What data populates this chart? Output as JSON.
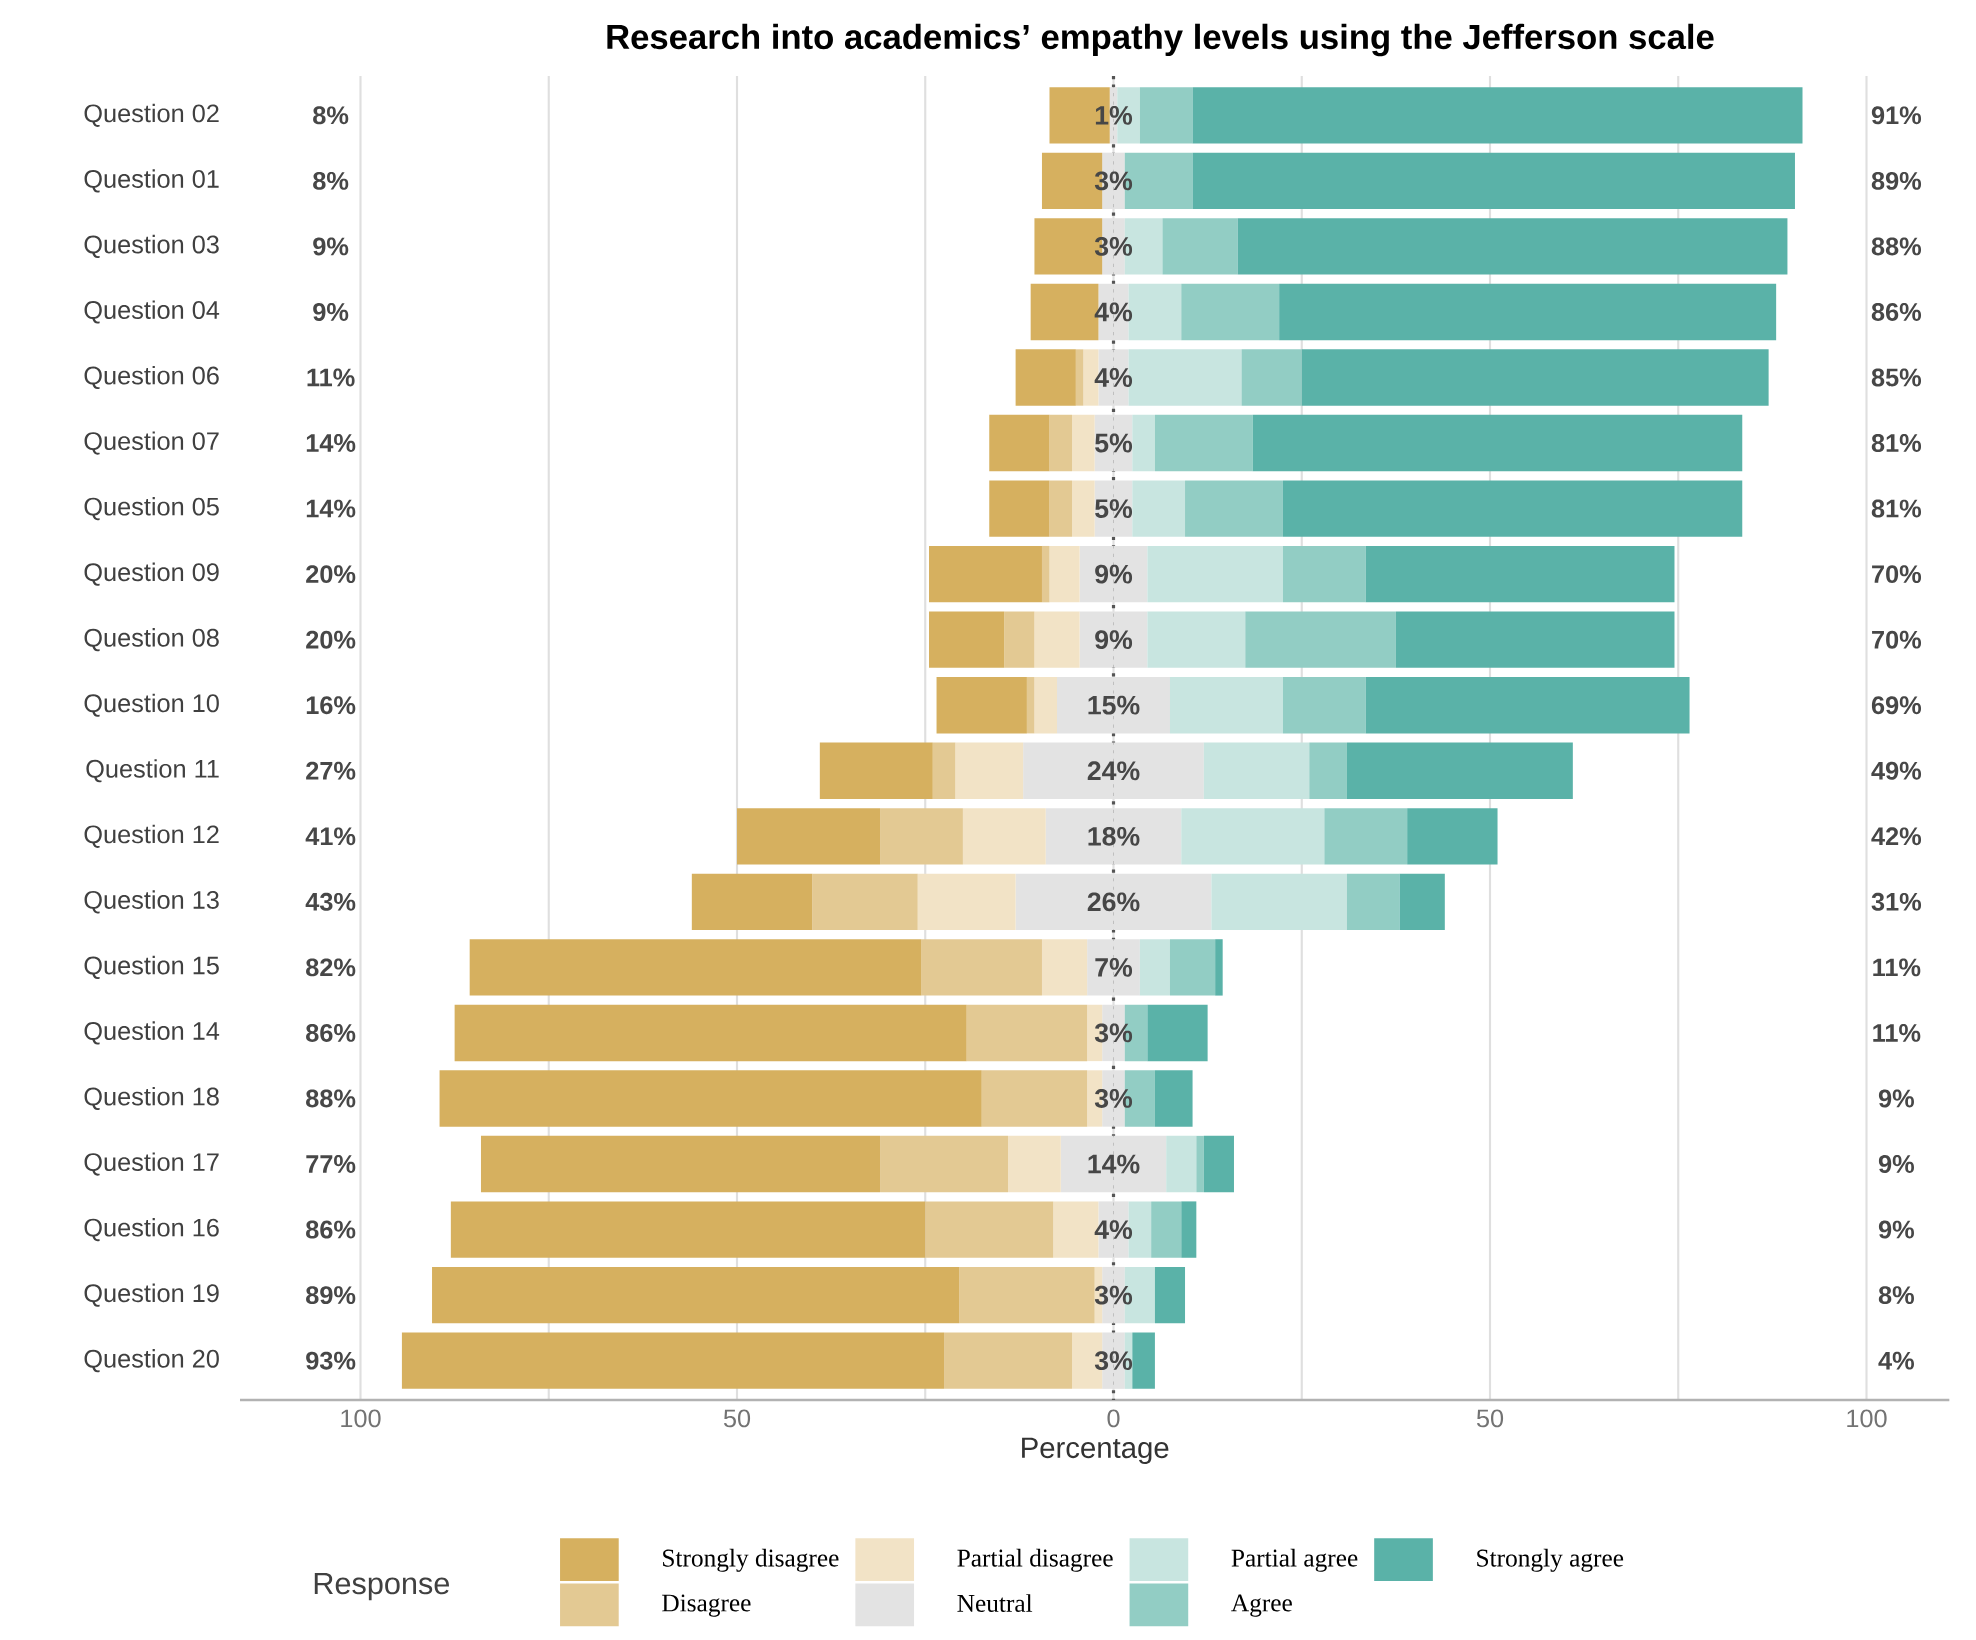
{
  "chart_data": {
    "type": "bar",
    "orientation": "horizontal",
    "stacked": true,
    "title": "Research into academics’ empathy levels using the Jefferson scale",
    "xlabel": "Percentage",
    "legend_title": "Response",
    "legend": "bottom",
    "grid": "x",
    "categories": [
      "Question 02",
      "Question 01",
      "Question 03",
      "Question 04",
      "Question 06",
      "Question 07",
      "Question 05",
      "Question 09",
      "Question 08",
      "Question 10",
      "Question 11",
      "Question 12",
      "Question 13",
      "Question 15",
      "Question 14",
      "Question 18",
      "Question 17",
      "Question 16",
      "Question 19",
      "Question 20"
    ],
    "xlim": [
      -116,
      111
    ],
    "xticks": [
      {
        "value": -100,
        "label": "100"
      },
      {
        "value": -75,
        "label": null
      },
      {
        "value": -50,
        "label": "50"
      },
      {
        "value": -25,
        "label": null
      },
      0,
      {
        "value": 25,
        "label": null
      },
      50,
      {
        "value": 75,
        "label": null
      },
      100
    ],
    "ref_lines": [
      {
        "axis": "x",
        "value": 0,
        "color": "#555555",
        "line_style": "dotted"
      }
    ],
    "series": [
      {
        "name": "Neutral",
        "color": "#e3e3e3",
        "values": [
          -0.5,
          -1.5,
          -1.5,
          -2,
          -2,
          -2.5,
          -2.5,
          -4.5,
          -4.5,
          -7.5,
          -12,
          -9,
          -13,
          -3.5,
          -1.5,
          -1.5,
          -7,
          -2,
          -1.5,
          -1.5
        ]
      },
      {
        "name": "Partial disagree",
        "color": "#f2e3c6",
        "values": [
          0,
          0,
          0,
          0,
          -2,
          -3,
          -3,
          -4,
          -6,
          -3,
          -9,
          -11,
          -13,
          -6,
          -2,
          -2,
          -7,
          -6,
          -1,
          -4
        ]
      },
      {
        "name": "Disagree",
        "color": "#e3c993",
        "values": [
          0,
          0,
          0,
          0,
          -1,
          -3,
          -3,
          -1,
          -4,
          -1,
          -3,
          -11,
          -14,
          -16,
          -16,
          -14,
          -17,
          -17,
          -18,
          -17
        ]
      },
      {
        "name": "Strongly disagree",
        "color": "#d6b05f",
        "values": [
          -8,
          -8,
          -9,
          -9,
          -8,
          -8,
          -8,
          -15,
          -10,
          -12,
          -15,
          -19,
          -16,
          -60,
          -68,
          -72,
          -53,
          -63,
          -70,
          -72
        ]
      },
      {
        "color": "#e3e3e3",
        "values": [
          0.5,
          1.5,
          1.5,
          2,
          2,
          2.5,
          2.5,
          4.5,
          4.5,
          7.5,
          12,
          9,
          13,
          3.5,
          1.5,
          1.5,
          7,
          2,
          1.5,
          1.5
        ]
      },
      {
        "name": "Partial agree",
        "color": "#c8e5e0",
        "values": [
          3,
          0,
          5,
          7,
          15,
          3,
          7,
          18,
          13,
          15,
          14,
          19,
          18,
          4,
          0,
          0,
          4,
          3,
          4,
          1
        ]
      },
      {
        "name": "Agree",
        "color": "#92cdc4",
        "values": [
          7,
          9,
          10,
          13,
          8,
          13,
          13,
          11,
          20,
          11,
          5,
          11,
          7,
          6,
          3,
          4,
          1,
          4,
          0,
          0
        ]
      },
      {
        "name": "Strongly agree",
        "color": "#5ab2a8",
        "values": [
          81,
          80,
          73,
          66,
          62,
          65,
          61,
          41,
          37,
          43,
          30,
          12,
          6,
          1,
          8,
          5,
          4,
          2,
          4,
          3
        ]
      }
    ],
    "annotations": [
      "8%",
      "8%",
      "9%",
      "9%",
      "11%",
      "14%",
      "14%",
      "20%",
      "20%",
      "16%",
      "27%",
      "41%",
      "43%",
      "82%",
      "86%",
      "88%",
      "77%",
      "86%",
      "89%",
      "93%",
      "1%",
      "3%",
      "3%",
      "4%",
      "4%",
      "5%",
      "5%",
      "9%",
      "9%",
      "15%",
      "24%",
      "18%",
      "26%",
      "7%",
      "3%",
      "3%",
      "14%",
      "4%",
      "3%",
      "3%",
      "91%",
      "89%",
      "88%",
      "86%",
      "85%",
      "81%",
      "81%",
      "70%",
      "70%",
      "69%",
      "49%",
      "42%",
      "31%",
      "11%",
      "11%",
      "9%",
      "9%",
      "9%",
      "8%",
      "4%"
    ]
  }
}
